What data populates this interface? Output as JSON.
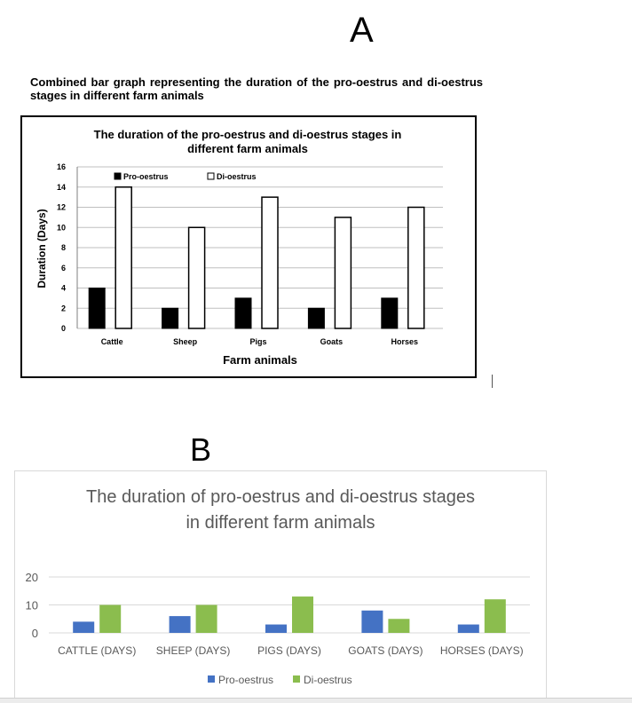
{
  "panel_a": {
    "label": "A",
    "caption": "Combined bar graph representing the duration of the pro-oestrus and di-oestrus stages in different farm animals"
  },
  "panel_b": {
    "label": "B"
  },
  "colors": {
    "a_pro": "#000000",
    "a_di": "#ffffff",
    "b_pro": "#4472c4",
    "b_di": "#8bbd4e",
    "b_text": "#595959",
    "b_grid": "#d9d9d9"
  },
  "chart_data": [
    {
      "type": "bar",
      "title": [
        "The duration of the pro-oestrus and di-oestrus stages in",
        "different farm animals"
      ],
      "xlabel": "Farm animals",
      "ylabel": "Duration (Days)",
      "categories": [
        "Cattle",
        "Sheep",
        "Pigs",
        "Goats",
        "Horses"
      ],
      "series": [
        {
          "name": "Pro-oestrus",
          "values": [
            4,
            2,
            3,
            2,
            3
          ]
        },
        {
          "name": "Di-oestrus",
          "values": [
            14,
            10,
            13,
            11,
            12
          ]
        }
      ],
      "ylim": [
        0,
        16
      ],
      "yticks": [
        0,
        2,
        4,
        6,
        8,
        10,
        12,
        14,
        16
      ],
      "grid": true,
      "legend": "top-left"
    },
    {
      "type": "bar",
      "title": [
        "The duration of pro-oestrus and di-oestrus stages",
        "in different farm animals"
      ],
      "xlabel": "",
      "ylabel": "",
      "categories": [
        "CATTLE (DAYS)",
        "SHEEP (DAYS)",
        "PIGS (DAYS)",
        "GOATS (DAYS)",
        "HORSES (DAYS)"
      ],
      "series": [
        {
          "name": "Pro-oestrus",
          "values": [
            4,
            6,
            3,
            8,
            3
          ]
        },
        {
          "name": "Di-oestrus",
          "values": [
            10,
            10,
            13,
            5,
            12
          ]
        }
      ],
      "ylim": [
        0,
        20
      ],
      "yticks": [
        0,
        10,
        20
      ],
      "grid": true,
      "legend": "bottom"
    }
  ]
}
